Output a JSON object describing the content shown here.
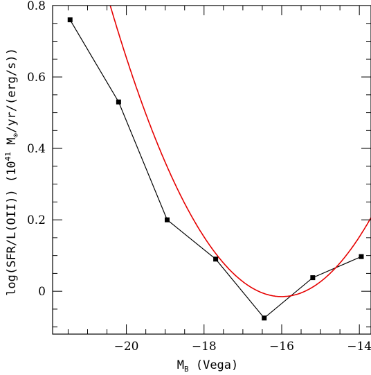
{
  "chart_data": {
    "type": "line",
    "xlabel_main": "M",
    "xlabel_sub": "B",
    "xlabel_rest": " (Vega)",
    "ylabel_part1": "log(SFR/L(OII)) (10",
    "ylabel_sup": "41",
    "ylabel_part2": " M",
    "ylabel_sub": "⊙",
    "ylabel_part3": "/yr/(erg/s))",
    "xlim": [
      -21.9,
      -13.7
    ],
    "ylim": [
      -0.12,
      0.8
    ],
    "x_ticks": [
      -20,
      -18,
      -16,
      -14
    ],
    "x_tick_labels": [
      "−20",
      "−18",
      "−16",
      "−14"
    ],
    "y_ticks": [
      0,
      0.2,
      0.4,
      0.6,
      0.8
    ],
    "y_tick_labels": [
      "0",
      "0.2",
      "0.4",
      "0.6",
      "0.8"
    ],
    "series": [
      {
        "x": [
          -21.45,
          -20.2,
          -18.95,
          -17.7,
          -16.45,
          -15.2,
          -13.95
        ],
        "y": [
          0.76,
          0.53,
          0.2,
          0.09,
          -0.075,
          0.038,
          0.097
        ],
        "color": "#000000",
        "marker": "square"
      },
      {
        "fit": "quadratic",
        "coefficients": [
          -0.015,
          0.0418,
          -16.0
        ],
        "color": "#e60000"
      }
    ]
  }
}
